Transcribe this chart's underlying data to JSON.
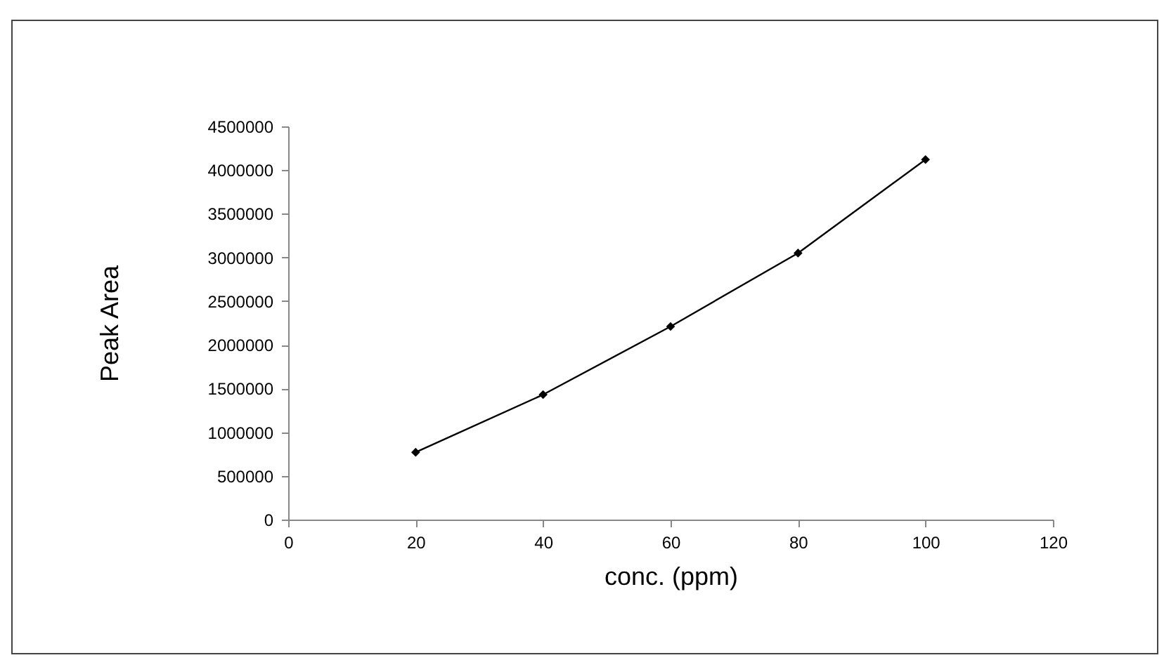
{
  "chart_data": {
    "type": "line",
    "xlabel": "conc. (ppm)",
    "ylabel": "Peak Area",
    "x": [
      20,
      40,
      60,
      80,
      100
    ],
    "series": [
      {
        "color": "#000000",
        "values": [
          770000,
          1430000,
          2210000,
          3050000,
          4120000
        ]
      }
    ],
    "xlim": [
      0,
      120
    ],
    "xticks": [
      0,
      20,
      40,
      60,
      80,
      100,
      120
    ],
    "ylim": [
      0,
      4500000
    ],
    "yticks": [
      0,
      500000,
      1000000,
      1500000,
      2000000,
      2500000,
      3000000,
      3500000,
      4000000,
      4500000
    ],
    "grid": false,
    "marker": "diamond",
    "line_style": "solid"
  }
}
